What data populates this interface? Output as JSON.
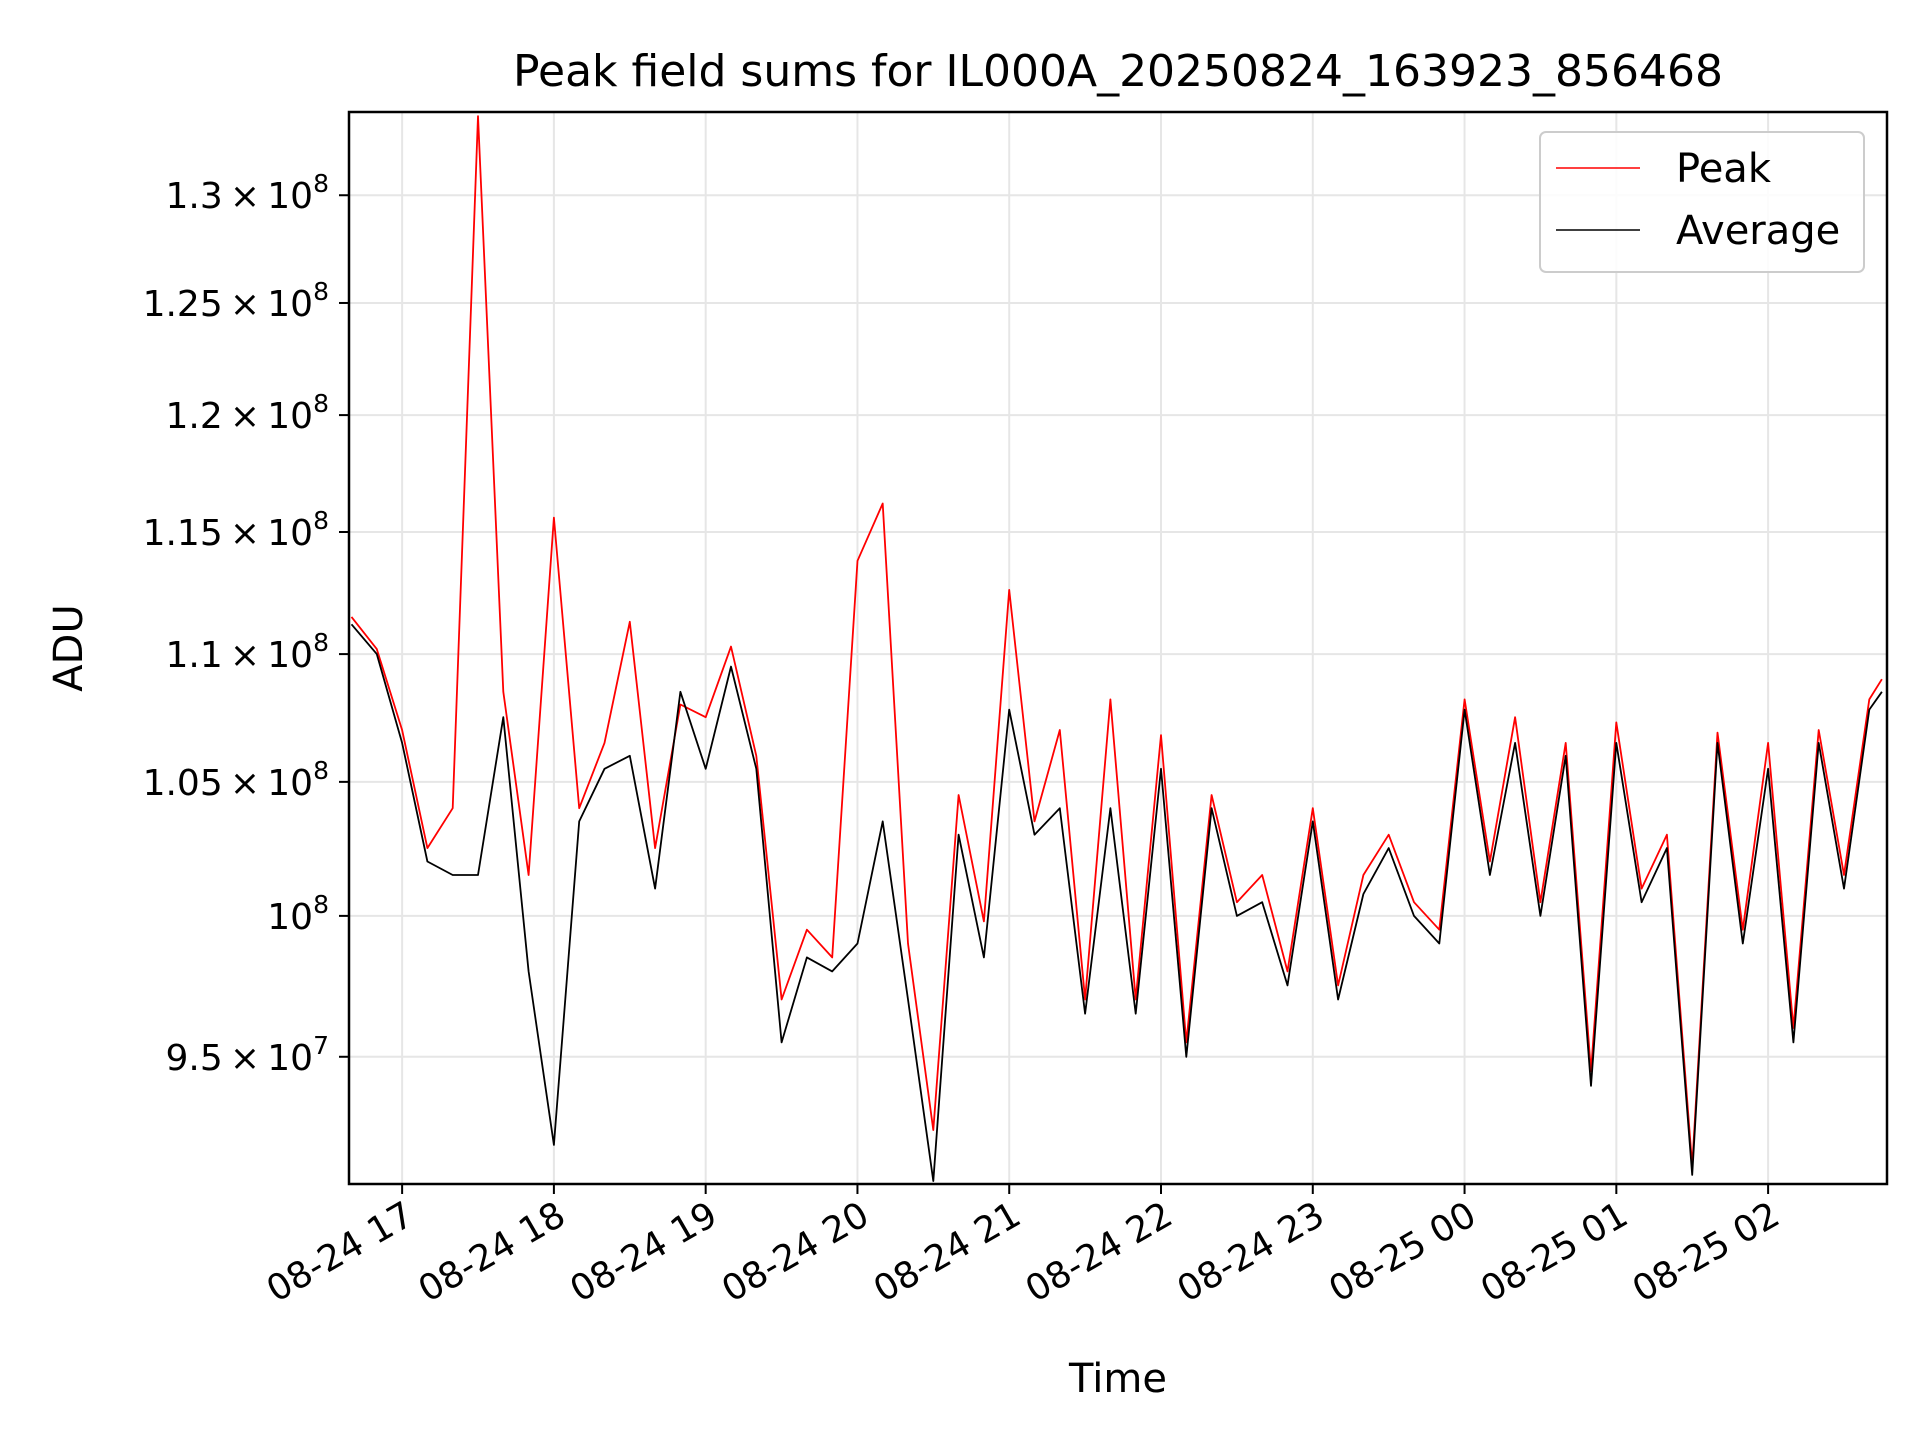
{
  "chart_data": {
    "type": "line",
    "title": "Peak field sums for IL000A_20250824_163923_856468",
    "xlabel": "Time",
    "ylabel": "ADU",
    "yscale": "log",
    "grid": true,
    "legend_position": "top-right",
    "xlim": [
      "2025-08-24 16:39",
      "2025-08-25 02:47"
    ],
    "ylim": [
      90700000,
      134000000
    ],
    "x_ticks": [
      {
        "value": "2025-08-24 17:00",
        "label": "08-24 17"
      },
      {
        "value": "2025-08-24 18:00",
        "label": "08-24 18"
      },
      {
        "value": "2025-08-24 19:00",
        "label": "08-24 19"
      },
      {
        "value": "2025-08-24 20:00",
        "label": "08-24 20"
      },
      {
        "value": "2025-08-24 21:00",
        "label": "08-24 21"
      },
      {
        "value": "2025-08-24 22:00",
        "label": "08-24 22"
      },
      {
        "value": "2025-08-24 23:00",
        "label": "08-24 23"
      },
      {
        "value": "2025-08-25 00:00",
        "label": "08-25 00"
      },
      {
        "value": "2025-08-25 01:00",
        "label": "08-25 01"
      },
      {
        "value": "2025-08-25 02:00",
        "label": "08-25 02"
      }
    ],
    "y_ticks": [
      {
        "value": 95000000,
        "mantissa": "9.5",
        "exponent": "7"
      },
      {
        "value": 100000000,
        "mantissa": "",
        "exponent": "8"
      },
      {
        "value": 105000000,
        "mantissa": "1.05",
        "exponent": "8"
      },
      {
        "value": 110000000,
        "mantissa": "1.1",
        "exponent": "8"
      },
      {
        "value": 115000000,
        "mantissa": "1.15",
        "exponent": "8"
      },
      {
        "value": 120000000,
        "mantissa": "1.2",
        "exponent": "8"
      },
      {
        "value": 125000000,
        "mantissa": "1.25",
        "exponent": "8"
      },
      {
        "value": 130000000,
        "mantissa": "1.3",
        "exponent": "8"
      }
    ],
    "x": [
      "2025-08-24 16:40",
      "2025-08-24 16:50",
      "2025-08-24 17:00",
      "2025-08-24 17:10",
      "2025-08-24 17:20",
      "2025-08-24 17:30",
      "2025-08-24 17:40",
      "2025-08-24 17:50",
      "2025-08-24 18:00",
      "2025-08-24 18:10",
      "2025-08-24 18:20",
      "2025-08-24 18:30",
      "2025-08-24 18:40",
      "2025-08-24 18:50",
      "2025-08-24 19:00",
      "2025-08-24 19:10",
      "2025-08-24 19:20",
      "2025-08-24 19:30",
      "2025-08-24 19:40",
      "2025-08-24 19:50",
      "2025-08-24 20:00",
      "2025-08-24 20:10",
      "2025-08-24 20:20",
      "2025-08-24 20:30",
      "2025-08-24 20:40",
      "2025-08-24 20:50",
      "2025-08-24 21:00",
      "2025-08-24 21:10",
      "2025-08-24 21:20",
      "2025-08-24 21:30",
      "2025-08-24 21:40",
      "2025-08-24 21:50",
      "2025-08-24 22:00",
      "2025-08-24 22:10",
      "2025-08-24 22:20",
      "2025-08-24 22:30",
      "2025-08-24 22:40",
      "2025-08-24 22:50",
      "2025-08-24 23:00",
      "2025-08-24 23:10",
      "2025-08-24 23:20",
      "2025-08-24 23:30",
      "2025-08-24 23:40",
      "2025-08-24 23:50",
      "2025-08-25 00:00",
      "2025-08-25 00:10",
      "2025-08-25 00:20",
      "2025-08-25 00:30",
      "2025-08-25 00:40",
      "2025-08-25 00:50",
      "2025-08-25 01:00",
      "2025-08-25 01:10",
      "2025-08-25 01:20",
      "2025-08-25 01:30",
      "2025-08-25 01:40",
      "2025-08-25 01:50",
      "2025-08-25 02:00",
      "2025-08-25 02:10",
      "2025-08-25 02:20",
      "2025-08-25 02:30",
      "2025-08-25 02:40",
      "2025-08-25 02:45"
    ],
    "series": [
      {
        "name": "Peak",
        "color": "#ff0000",
        "values": [
          111500000,
          110200000,
          107000000,
          102500000,
          104000000,
          133800000,
          108500000,
          101500000,
          115600000,
          104000000,
          106500000,
          111300000,
          102500000,
          108000000,
          107500000,
          110300000,
          106000000,
          97000000,
          99500000,
          98500000,
          113800000,
          116200000,
          99000000,
          92500000,
          104500000,
          99800000,
          112600000,
          103500000,
          107000000,
          97000000,
          108200000,
          97000000,
          106800000,
          95500000,
          104500000,
          100500000,
          101500000,
          98000000,
          104000000,
          97500000,
          101500000,
          103000000,
          100500000,
          99500000,
          108200000,
          102000000,
          107500000,
          100500000,
          106500000,
          94500000,
          107300000,
          101000000,
          103000000,
          91300000,
          106900000,
          99500000,
          106500000,
          96000000,
          107000000,
          101500000,
          108200000,
          109000000
        ]
      },
      {
        "name": "Average",
        "color": "#000000",
        "values": [
          111200000,
          110000000,
          106500000,
          102000000,
          101500000,
          101500000,
          107500000,
          98000000,
          92000000,
          103500000,
          105500000,
          106000000,
          101000000,
          108500000,
          105500000,
          109500000,
          105500000,
          95500000,
          98500000,
          98000000,
          99000000,
          103500000,
          97000000,
          90800000,
          103000000,
          98500000,
          107800000,
          103000000,
          104000000,
          96500000,
          104000000,
          96500000,
          105500000,
          95000000,
          104000000,
          100000000,
          100500000,
          97500000,
          103500000,
          97000000,
          100800000,
          102500000,
          100000000,
          99000000,
          107800000,
          101500000,
          106500000,
          100000000,
          106000000,
          94000000,
          106500000,
          100500000,
          102500000,
          91000000,
          106500000,
          99000000,
          105500000,
          95500000,
          106500000,
          101000000,
          107800000,
          108500000
        ]
      }
    ]
  }
}
